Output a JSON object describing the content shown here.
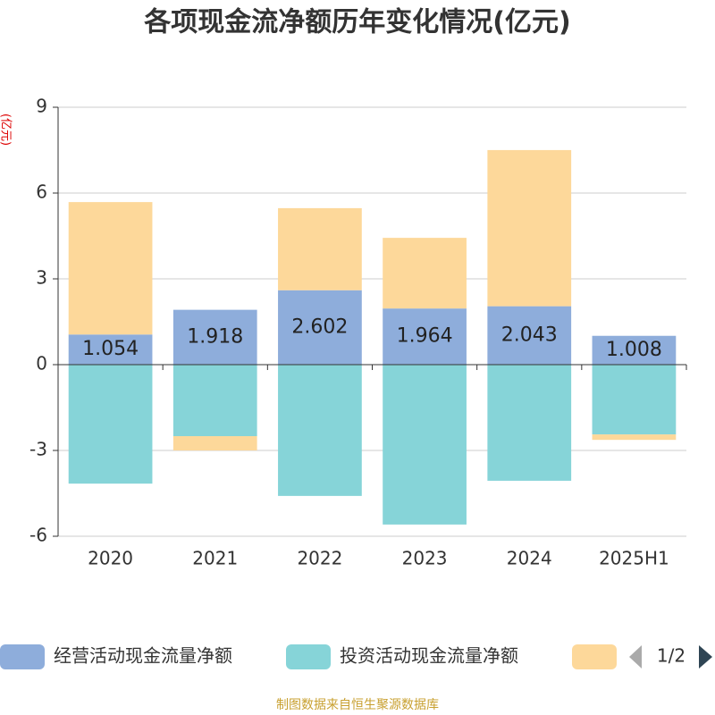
{
  "chart_data": {
    "type": "bar",
    "stacked": true,
    "title": "各项现金流净额历年变化情况(亿元)",
    "y_label": "(亿元)",
    "categories": [
      "2020",
      "2021",
      "2022",
      "2023",
      "2024",
      "2025H1"
    ],
    "series": [
      {
        "name": "经营活动现金流量净额",
        "color": "#8eaddb",
        "values": [
          1.054,
          1.918,
          2.602,
          1.964,
          2.043,
          1.008
        ],
        "data_labels": true
      },
      {
        "name": "投资活动现金流量净额",
        "color": "#86d4d8",
        "values": [
          -4.16,
          -2.5,
          -4.59,
          -5.59,
          -4.06,
          -2.44
        ]
      },
      {
        "name": null,
        "color": "#fdd89a",
        "values": [
          4.63,
          -0.5,
          2.87,
          2.47,
          5.46,
          -0.19
        ]
      }
    ],
    "ylim": [
      -6,
      9
    ],
    "yticks": [
      -6,
      -3,
      0,
      3,
      6,
      9
    ],
    "grid": true,
    "legend": "bottom",
    "legend_page": "1/2",
    "source": "制图数据来自恒生聚源数据库"
  }
}
